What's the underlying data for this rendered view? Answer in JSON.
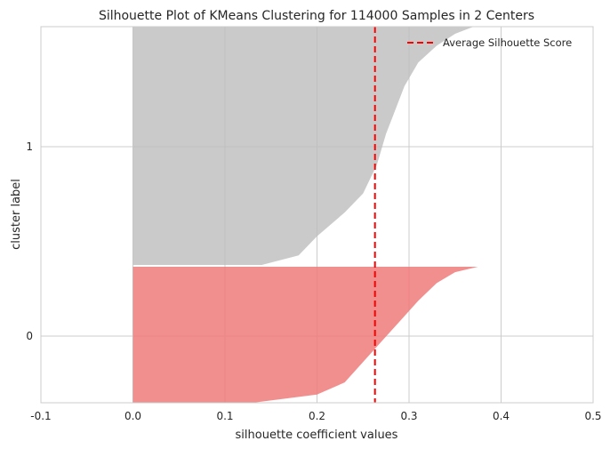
{
  "chart_data": {
    "type": "area",
    "title": "Silhouette Plot of KMeans Clustering for 114000 Samples in 2 Centers",
    "xlabel": "silhouette coefficient values",
    "ylabel": "cluster label",
    "xlim": [
      -0.1,
      0.5
    ],
    "x_ticks": [
      "-0.1",
      "0.0",
      "0.1",
      "0.2",
      "0.3",
      "0.4",
      "0.5"
    ],
    "y_ticks": [
      "0",
      "1"
    ],
    "grid": true,
    "legend": {
      "placement": "top-right",
      "entries": [
        "Average Silhouette Score"
      ]
    },
    "average_silhouette_score": 0.263,
    "clusters": [
      {
        "label": "0",
        "color": "#ee7a7a",
        "sample_fraction_bottom_to_top": [
          0.0,
          0.06,
          0.15,
          0.3,
          0.45,
          0.6,
          0.75,
          0.88,
          0.96,
          1.0
        ],
        "silhouette_values": [
          0.13,
          0.2,
          0.23,
          0.25,
          0.27,
          0.29,
          0.31,
          0.33,
          0.35,
          0.375
        ]
      },
      {
        "label": "1",
        "color": "#bdbdbd",
        "sample_fraction_bottom_to_top": [
          0.0,
          0.04,
          0.12,
          0.22,
          0.3,
          0.42,
          0.55,
          0.65,
          0.75,
          0.85,
          0.92,
          0.97,
          1.0
        ],
        "silhouette_values": [
          0.14,
          0.18,
          0.2,
          0.23,
          0.25,
          0.265,
          0.275,
          0.285,
          0.295,
          0.31,
          0.33,
          0.35,
          0.37
        ]
      }
    ],
    "colors": {
      "average_line": "#ff0000",
      "grid": "#cccccc",
      "axes_edge": "#cccccc"
    }
  }
}
